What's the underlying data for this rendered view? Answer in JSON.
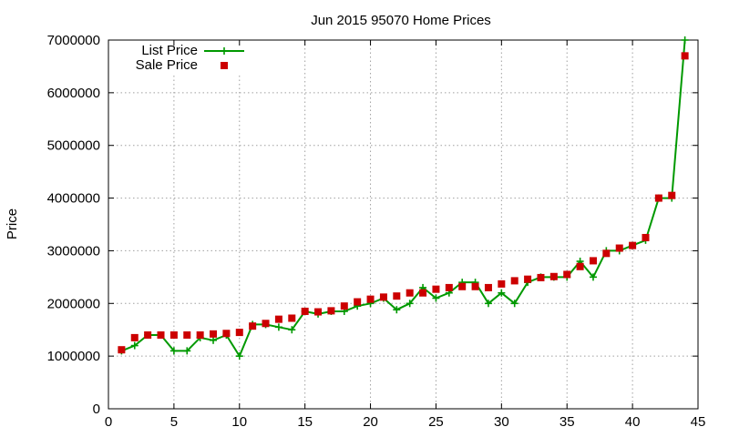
{
  "chart_data": {
    "type": "line",
    "title": "Jun 2015 95070 Home Prices",
    "xlabel": "",
    "ylabel": "Price",
    "xlim": [
      0,
      45
    ],
    "ylim": [
      0,
      7000000
    ],
    "xticks": [
      0,
      5,
      10,
      15,
      20,
      25,
      30,
      35,
      40,
      45
    ],
    "yticks": [
      0,
      1000000,
      2000000,
      3000000,
      4000000,
      5000000,
      6000000,
      7000000
    ],
    "xtick_labels": [
      "0",
      "5",
      "10",
      "15",
      "20",
      "25",
      "30",
      "35",
      "40",
      "45"
    ],
    "ytick_labels": [
      "0",
      "1000000",
      "2000000",
      "3000000",
      "4000000",
      "5000000",
      "6000000",
      "7000000"
    ],
    "grid": true,
    "legend_position": "top-left",
    "series": [
      {
        "name": "List Price",
        "style": "line-plus",
        "color": "#009900",
        "x": [
          1,
          2,
          3,
          4,
          5,
          6,
          7,
          8,
          9,
          10,
          11,
          12,
          13,
          14,
          15,
          16,
          17,
          18,
          19,
          20,
          21,
          22,
          23,
          24,
          25,
          26,
          27,
          28,
          29,
          30,
          31,
          32,
          33,
          34,
          35,
          36,
          37,
          38,
          39,
          40,
          41,
          42,
          43,
          44
        ],
        "values": [
          1100000,
          1200000,
          1400000,
          1400000,
          1100000,
          1100000,
          1350000,
          1300000,
          1400000,
          1000000,
          1600000,
          1600000,
          1550000,
          1500000,
          1850000,
          1800000,
          1850000,
          1850000,
          1950000,
          2000000,
          2100000,
          1880000,
          2000000,
          2300000,
          2100000,
          2200000,
          2400000,
          2400000,
          2000000,
          2200000,
          2000000,
          2400000,
          2500000,
          2500000,
          2500000,
          2800000,
          2500000,
          3000000,
          3000000,
          3100000,
          3200000,
          4000000,
          4000000,
          7000000
        ]
      },
      {
        "name": "Sale Price",
        "style": "square-markers",
        "color": "#cc0000",
        "x": [
          1,
          2,
          3,
          4,
          5,
          6,
          7,
          8,
          9,
          10,
          11,
          12,
          13,
          14,
          15,
          16,
          17,
          18,
          19,
          20,
          21,
          22,
          23,
          24,
          25,
          26,
          27,
          28,
          29,
          30,
          31,
          32,
          33,
          34,
          35,
          36,
          37,
          38,
          39,
          40,
          41,
          42,
          43,
          44
        ],
        "values": [
          1120000,
          1350000,
          1400000,
          1400000,
          1400000,
          1400000,
          1400000,
          1420000,
          1430000,
          1450000,
          1570000,
          1620000,
          1700000,
          1720000,
          1850000,
          1840000,
          1860000,
          1950000,
          2030000,
          2080000,
          2120000,
          2140000,
          2200000,
          2200000,
          2270000,
          2300000,
          2320000,
          2320000,
          2300000,
          2370000,
          2430000,
          2460000,
          2490000,
          2510000,
          2550000,
          2700000,
          2810000,
          2950000,
          3050000,
          3100000,
          3250000,
          4000000,
          4050000,
          6700000
        ]
      }
    ]
  }
}
